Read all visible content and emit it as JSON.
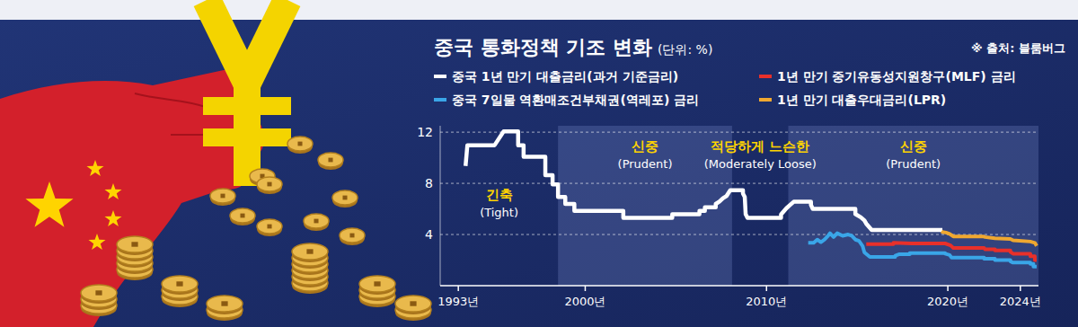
{
  "chart_data": {
    "type": "line",
    "title": "중국 통화정책 기조 변화",
    "subtitle": "(단위: %)",
    "source": "※ 출처: 블룸버그",
    "legend": "top",
    "grid": true,
    "xlim": [
      1992,
      2025
    ],
    "ylim": [
      0,
      12.5
    ],
    "xticks": [
      {
        "value": 1993,
        "label": "1993년"
      },
      {
        "value": 2000,
        "label": "2000년"
      },
      {
        "value": 2010,
        "label": "2010년"
      },
      {
        "value": 2020,
        "label": "2020년"
      },
      {
        "value": 2024,
        "label": "2024년"
      }
    ],
    "yticks": [
      4,
      8,
      12
    ],
    "periods": [
      {
        "label": "긴축",
        "label_en": "(Tight)",
        "start": 1992,
        "end": 1998.5
      },
      {
        "label": "신중",
        "label_en": "(Prudent)",
        "start": 1998.5,
        "end": 2008.1
      },
      {
        "label": "적당하게 느슨한",
        "label_en": "(Moderately Loose)",
        "start": 2008.1,
        "end": 2011.2
      },
      {
        "label": "신중",
        "label_en": "(Prudent)",
        "start": 2011.2,
        "end": 2025
      }
    ],
    "series": [
      {
        "name": "중국 1년 만기 대출금리(과거 기준금리)",
        "color": "#ffffff",
        "x": [
          1993.4,
          1993.5,
          1995.0,
          1995.5,
          1996.3,
          1996.3,
          1996.6,
          1996.6,
          1997.8,
          1997.8,
          1998.2,
          1998.2,
          1998.5,
          1998.5,
          1998.9,
          1998.9,
          1999.4,
          1999.4,
          2002.1,
          2002.1,
          2004.8,
          2004.8,
          2006.3,
          2006.3,
          2006.6,
          2006.6,
          2007.2,
          2007.2,
          2007.4,
          2007.6,
          2007.8,
          2008.0,
          2008.7,
          2008.7,
          2008.8,
          2008.85,
          2008.95,
          2010.8,
          2010.8,
          2010.95,
          2011.1,
          2011.3,
          2011.5,
          2012.45,
          2012.45,
          2012.55,
          2014.9,
          2014.9,
          2015.2,
          2015.4,
          2015.5,
          2015.65,
          2015.8,
          2019.7
        ],
        "values": [
          9.36,
          10.98,
          10.98,
          12.06,
          12.06,
          10.98,
          10.98,
          10.08,
          10.08,
          8.64,
          8.64,
          7.92,
          7.92,
          6.93,
          6.93,
          6.39,
          6.39,
          5.85,
          5.85,
          5.31,
          5.31,
          5.58,
          5.58,
          5.85,
          5.85,
          6.12,
          6.12,
          6.39,
          6.57,
          6.84,
          7.02,
          7.47,
          7.47,
          7.2,
          6.93,
          5.58,
          5.31,
          5.31,
          5.56,
          5.81,
          6.06,
          6.31,
          6.56,
          6.56,
          6.31,
          6.0,
          6.0,
          5.6,
          5.35,
          5.1,
          4.85,
          4.6,
          4.35,
          4.35
        ]
      },
      {
        "name": "1년 만기 중기유동성지원창구(MLF) 금리",
        "color": "#e8302a",
        "x": [
          2015.5,
          2017.0,
          2017.0,
          2018.0,
          2019.85,
          2020.15,
          2020.3,
          2022.0,
          2022.05,
          2022.6,
          2022.6,
          2023.45,
          2023.45,
          2023.6,
          2024.55,
          2024.55,
          2024.8,
          2024.8,
          2024.9
        ],
        "values": [
          3.25,
          3.25,
          3.35,
          3.3,
          3.3,
          3.15,
          2.95,
          2.95,
          2.85,
          2.85,
          2.75,
          2.75,
          2.65,
          2.5,
          2.5,
          2.3,
          2.3,
          2.0,
          2.0
        ]
      },
      {
        "name": "중국 7일물 역환매조건부채권(역레포) 금리",
        "color": "#3aa6e8",
        "x": [
          2012.3,
          2012.6,
          2012.8,
          2013.0,
          2013.2,
          2013.4,
          2013.5,
          2013.7,
          2013.9,
          2014.2,
          2014.5,
          2014.7,
          2014.9,
          2015.1,
          2015.3,
          2015.4,
          2015.7,
          2017.1,
          2017.1,
          2017.3,
          2017.9,
          2017.9,
          2019.85,
          2019.85,
          2020.1,
          2020.2,
          2022.0,
          2022.0,
          2022.6,
          2022.6,
          2023.45,
          2023.45,
          2023.6,
          2024.55,
          2024.55,
          2024.72,
          2024.72,
          2024.9
        ],
        "values": [
          3.35,
          3.35,
          3.6,
          3.4,
          3.6,
          3.9,
          4.1,
          3.8,
          4.1,
          3.9,
          4.0,
          3.9,
          3.6,
          3.5,
          3.1,
          2.6,
          2.25,
          2.25,
          2.35,
          2.45,
          2.45,
          2.55,
          2.55,
          2.5,
          2.4,
          2.2,
          2.2,
          2.1,
          2.1,
          2.0,
          2.0,
          1.9,
          1.8,
          1.8,
          1.7,
          1.7,
          1.5,
          1.5
        ]
      },
      {
        "name": "1년 만기 대출우대금리(LPR)",
        "color": "#f0a830",
        "x": [
          2019.65,
          2019.7,
          2019.9,
          2020.1,
          2020.3,
          2021.95,
          2022.05,
          2022.6,
          2023.45,
          2023.6,
          2024.55,
          2024.8,
          2024.9
        ],
        "values": [
          4.25,
          4.2,
          4.15,
          4.05,
          3.85,
          3.85,
          3.8,
          3.7,
          3.65,
          3.55,
          3.45,
          3.35,
          3.1
        ]
      }
    ]
  }
}
